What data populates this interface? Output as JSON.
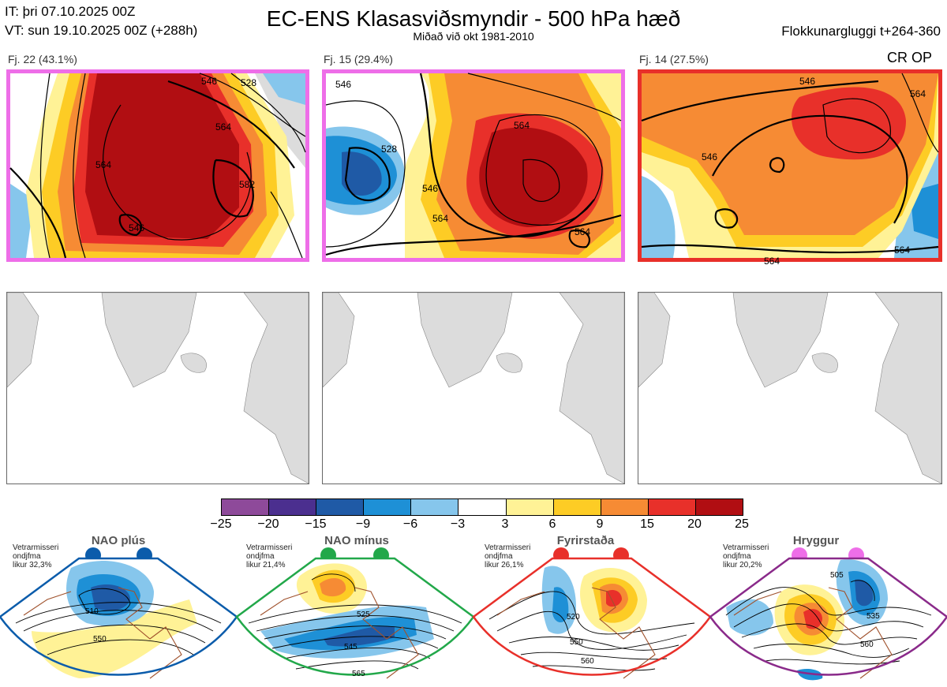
{
  "header": {
    "it_line": "IT: þri 07.10.2025 00Z",
    "vt_line": "VT: sun 19.10.2025 00Z  (+288h)",
    "title": "EC-ENS Klasasviðsmyndir - 500 hPa hæð",
    "subtitle": "Miðað við okt 1981-2010",
    "window": "Flokkunargluggi t+264-360"
  },
  "clusters": [
    {
      "label": "Fj. 22 (43.1%)",
      "frame_color": "#ee6ee8",
      "contours": [
        "546",
        "564",
        "582",
        "546",
        "564",
        "528"
      ]
    },
    {
      "label": "Fj. 15 (29.4%)",
      "frame_color": "#ee6ee8",
      "contours": [
        "546",
        "564",
        "528",
        "546",
        "564",
        "564"
      ]
    },
    {
      "label": "Fj. 14 (27.5%)",
      "frame_color": "#e8302a",
      "contours": [
        "546",
        "546",
        "564",
        "564",
        "564"
      ],
      "tag": "CR OP"
    }
  ],
  "colorbar": {
    "ticks": [
      "−25",
      "−20",
      "−15",
      "−9",
      "−6",
      "−3",
      "3",
      "6",
      "9",
      "15",
      "20",
      "25"
    ],
    "colors": [
      "#8e4a9a",
      "#4b2f8f",
      "#1f5aa6",
      "#1e90d6",
      "#86c6ec",
      "#ffffff",
      "#fff296",
      "#fdcc25",
      "#f68b34",
      "#e8302a",
      "#b10e12"
    ]
  },
  "regimes": [
    {
      "title": "NAO plús",
      "note": "Vetrarmisseri\nondjfma\nlikur 32,3%",
      "color": "#0b5cab",
      "contours": [
        "510",
        "550"
      ]
    },
    {
      "title": "NAO mínus",
      "note": "Vetrarmisseri\nondjfma\nlikur 21,4%",
      "color": "#22a84a",
      "contours": [
        "525",
        "545",
        "565"
      ]
    },
    {
      "title": "Fyrirstaða",
      "note": "Vetrarmisseri\nondjfma\nlikur 26,1%",
      "color": "#e8302a",
      "contours": [
        "520",
        "550",
        "560"
      ]
    },
    {
      "title": "Hryggur",
      "note": "Vetrarmisseri\nondjfma\nlikur 20,2%",
      "color": "#ee6ee8",
      "frame": "#8a2a8a",
      "contours": [
        "505",
        "535",
        "560"
      ]
    }
  ]
}
